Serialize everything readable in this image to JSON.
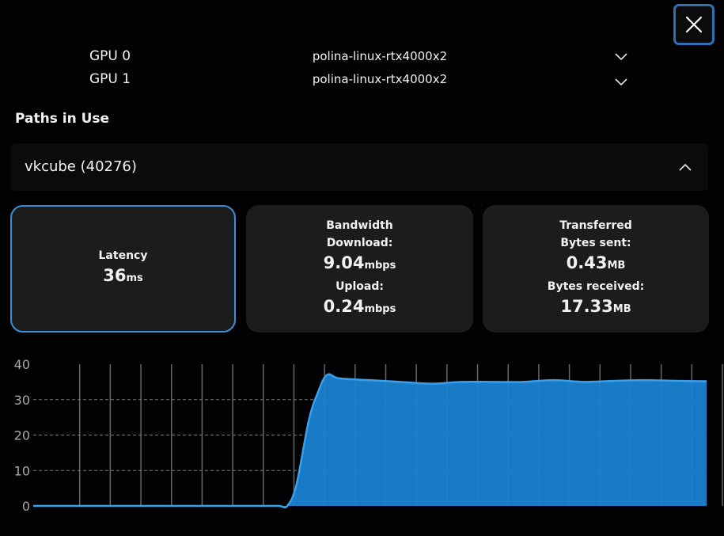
{
  "gpus": [
    {
      "label": "GPU 0",
      "host": "polina-linux-rtx4000x2"
    },
    {
      "label": "GPU 1",
      "host": "polina-linux-rtx4000x2"
    }
  ],
  "paths": {
    "title": "Paths in Use",
    "process": "vkcube (40276)"
  },
  "stats": {
    "latency": {
      "label": "Latency",
      "value": "36",
      "unit": "ms"
    },
    "bandwidth": {
      "title": "Bandwidth",
      "download_label": "Download:",
      "download_value": "9.04",
      "download_unit": "mbps",
      "upload_label": "Upload:",
      "upload_value": "0.24",
      "upload_unit": "mbps"
    },
    "transferred": {
      "title": "Transferred",
      "sent_label": "Bytes sent:",
      "sent_value": "0.43",
      "sent_unit": "MB",
      "received_label": "Bytes received:",
      "received_value": "17.33",
      "received_unit": "MB"
    }
  },
  "icons": {
    "close": "close-icon",
    "gpu_dropdown": "chevron-down-icon",
    "collapse": "chevron-up-icon"
  },
  "colors": {
    "accent": "#3a8fd9",
    "area_fill": "#1a82d0",
    "area_line": "#3aa0ee"
  },
  "chart_data": {
    "type": "area",
    "y_ticks": [
      "0",
      "10",
      "20",
      "30",
      "40"
    ],
    "ylim": [
      0,
      40
    ],
    "xlim": [
      0,
      22
    ],
    "grid": true,
    "x": [
      0,
      1,
      2,
      3,
      4,
      5,
      6,
      7,
      8,
      8.3,
      8.6,
      9,
      9.3,
      9.6,
      10,
      11,
      12,
      13,
      14,
      15,
      16,
      17,
      18,
      19,
      20,
      21,
      22
    ],
    "values": [
      0,
      0,
      0,
      0,
      0,
      0,
      0,
      0,
      0,
      0,
      6,
      24,
      32,
      37,
      36,
      35.5,
      35,
      34.5,
      35,
      35,
      35,
      35.5,
      35,
      35.3,
      35.5,
      35.3,
      35.2
    ]
  }
}
